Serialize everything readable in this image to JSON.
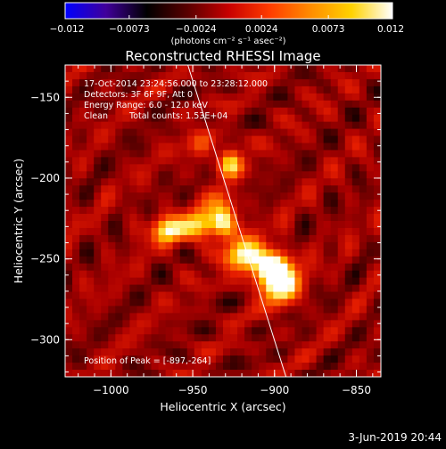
{
  "chart_data": {
    "type": "heatmap",
    "title": "Reconstructed RHESSI Image",
    "xlabel": "Heliocentric X (arcsec)",
    "ylabel": "Heliocentric Y (arcsec)",
    "xlim": [
      -1028,
      -835
    ],
    "ylim": [
      -323,
      -130
    ],
    "xticks": [
      -1000,
      -950,
      -900,
      -850
    ],
    "xtick_labels": [
      "−1000",
      "−950",
      "−900",
      "−850"
    ],
    "yticks": [
      -150,
      -200,
      -250,
      -300
    ],
    "ytick_labels": [
      "−150",
      "−200",
      "−250",
      "−300"
    ],
    "colorbar": {
      "min": -0.012,
      "max": 0.012,
      "ticks": [
        -0.012,
        -0.0073,
        -0.0024,
        0.0024,
        0.0073,
        0.012
      ],
      "tick_labels": [
        "−0.012",
        "−0.0073",
        "−0.0024",
        "0.0024",
        "0.0073",
        "0.012"
      ],
      "units": "(photons cm⁻² s⁻¹ asec⁻²)",
      "colors": [
        "#0000ff",
        "#40009a",
        "#000000",
        "#5a0000",
        "#c80000",
        "#ff3c00",
        "#ff8c00",
        "#ffd200",
        "#ffffff"
      ]
    },
    "annotations": [
      "17-Oct-2014 23:24:56.000 to 23:28:12.000",
      "Detectors: 3F 6F 9F, Att 0",
      "Energy Range: 6.0 - 12.0 keV",
      "Clean",
      "Total counts: 1.53E+04"
    ],
    "peak_label": "Position of Peak = [-897,-264]",
    "limb_line": [
      {
        "x": -953,
        "y": -130
      },
      {
        "x": -893,
        "y": -323
      }
    ],
    "sources": [
      {
        "x": -897,
        "y": -264,
        "amp": 0.0115,
        "rx": 8,
        "ry": 9
      },
      {
        "x": -907,
        "y": -252,
        "amp": 0.0085,
        "rx": 9,
        "ry": 7
      },
      {
        "x": -932,
        "y": -224,
        "amp": 0.0083,
        "rx": 6,
        "ry": 8
      },
      {
        "x": -962,
        "y": -232,
        "amp": 0.008,
        "rx": 10,
        "ry": 6
      },
      {
        "x": -943,
        "y": -228,
        "amp": 0.006,
        "rx": 6,
        "ry": 6
      },
      {
        "x": -927,
        "y": -190,
        "amp": 0.0062,
        "rx": 5,
        "ry": 8
      },
      {
        "x": -922,
        "y": -245,
        "amp": 0.0055,
        "rx": 7,
        "ry": 9
      },
      {
        "x": -945,
        "y": -182,
        "amp": 0.0035,
        "rx": 6,
        "ry": 6
      }
    ]
  },
  "footer": {
    "date": "3-Jun-2019 20:44"
  }
}
